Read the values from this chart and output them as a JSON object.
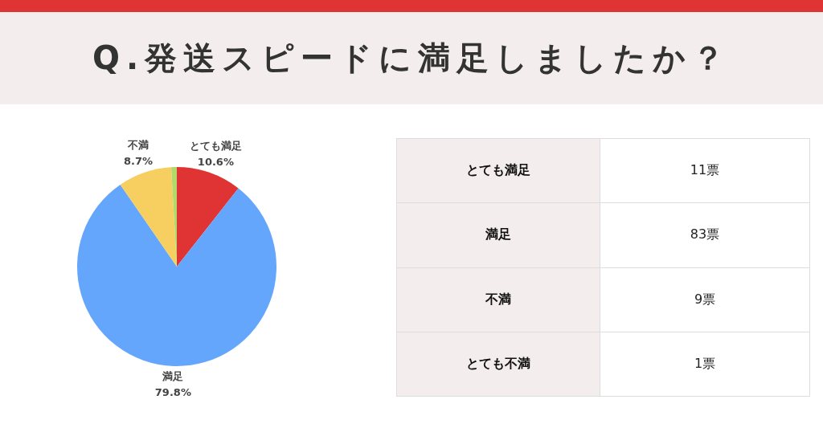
{
  "chart_data": [
    {
      "type": "pie",
      "title": "Q.発送スピードに満足しましたか？",
      "categories": [
        "とても満足",
        "満足",
        "不満",
        null
      ],
      "values": [
        10.6,
        79.8,
        8.7,
        0.9
      ],
      "colors": [
        "#e03434",
        "#64a6fb",
        "#f7cf60",
        "#b3d96b"
      ],
      "value_labels": [
        "10.6%",
        "79.8%",
        "8.7%",
        null
      ]
    },
    {
      "type": "other",
      "categories": [
        "とても満足",
        "満足",
        "不満",
        "とても不満"
      ],
      "value_labels": [
        "11票",
        "83票",
        "9票",
        "1票"
      ]
    }
  ]
}
